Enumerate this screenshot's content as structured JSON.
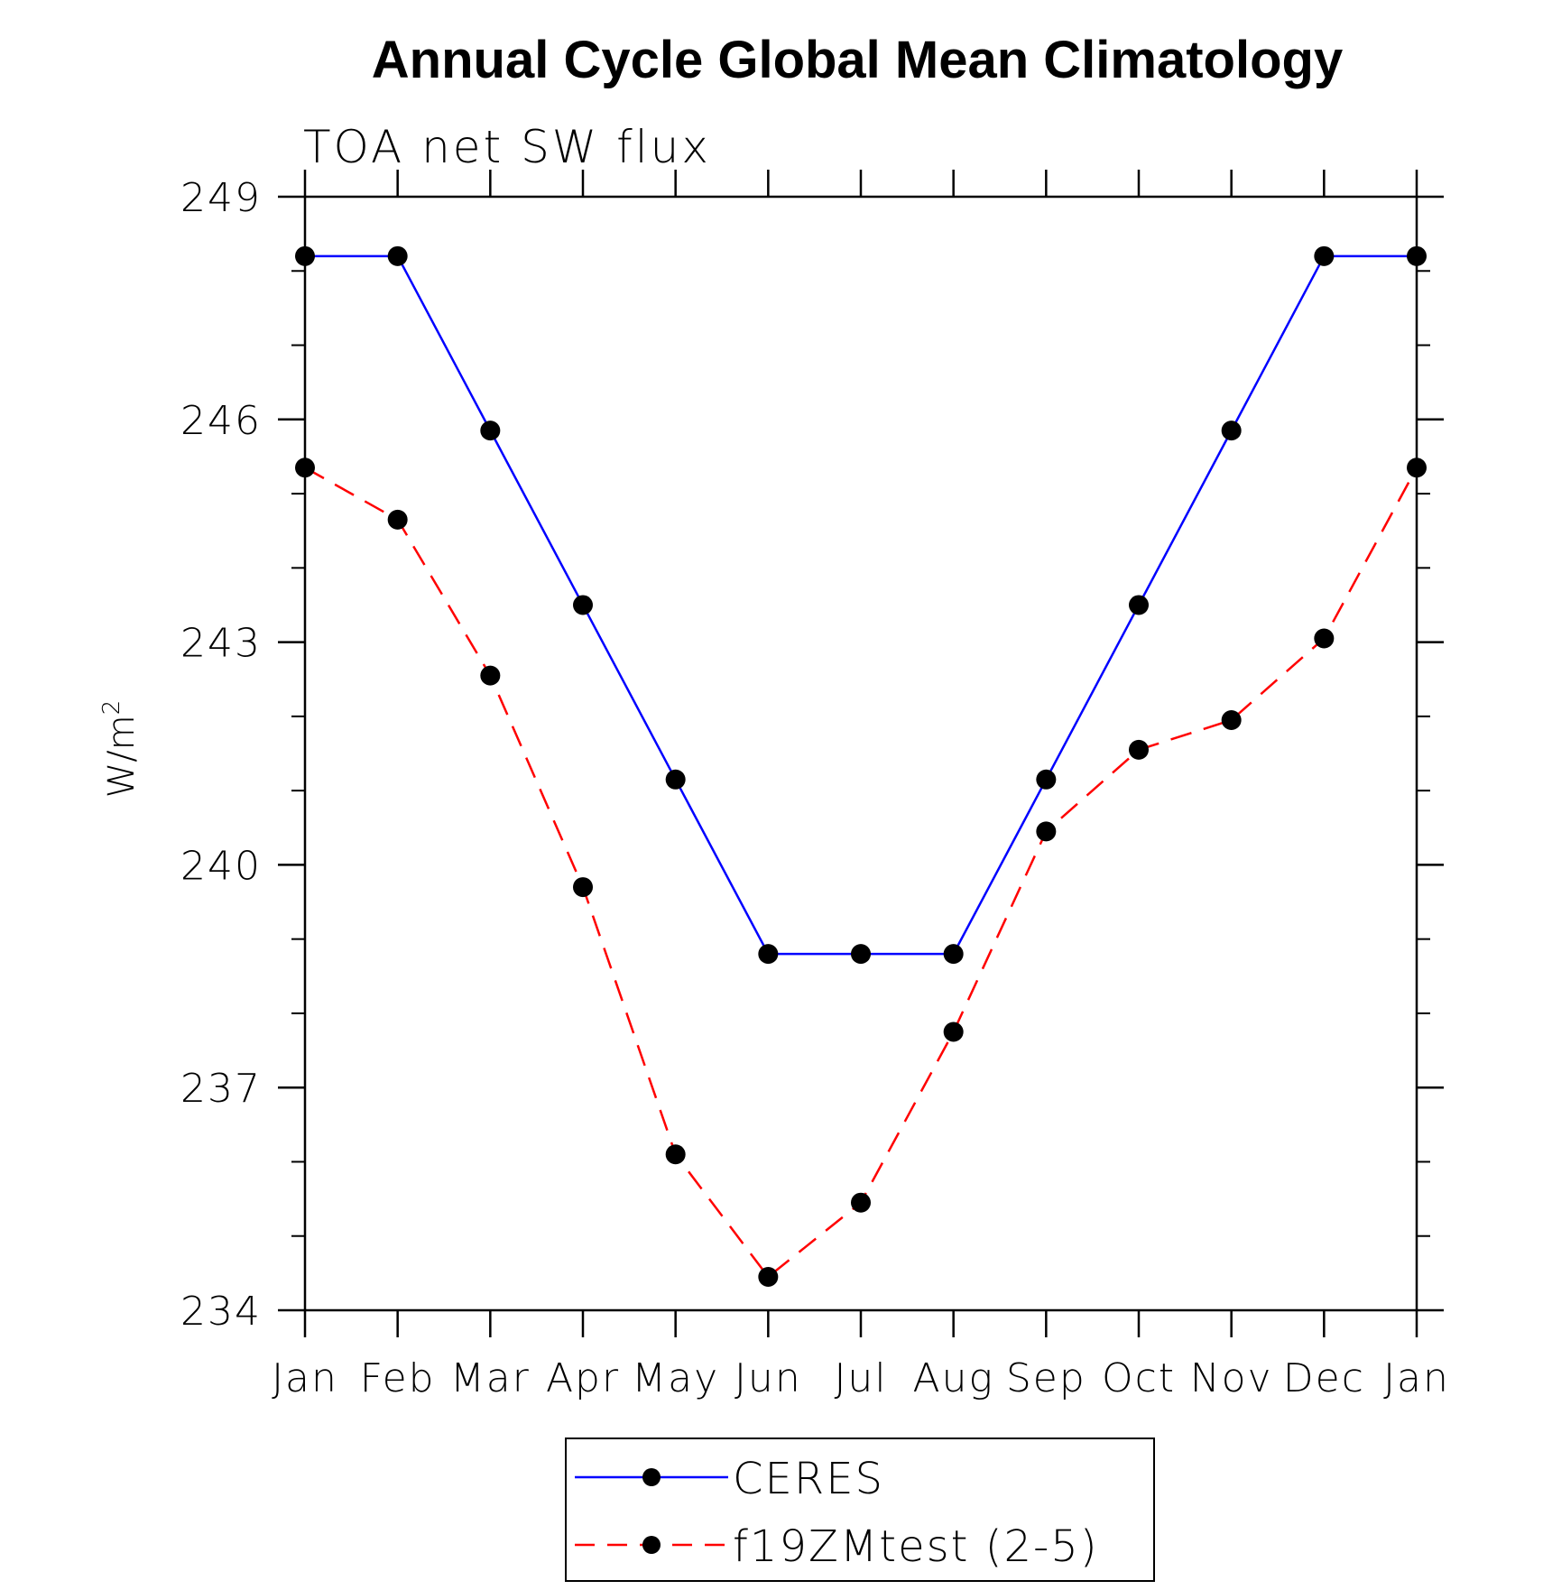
{
  "chart_data": {
    "type": "line",
    "title": "Annual Cycle Global Mean Climatology",
    "subtitle": "TOA net SW flux",
    "ylabel_base": "W/m",
    "ylabel_sup": "2",
    "categories": [
      "Jan",
      "Feb",
      "Mar",
      "Apr",
      "May",
      "Jun",
      "Jul",
      "Aug",
      "Sep",
      "Oct",
      "Nov",
      "Dec",
      "Jan"
    ],
    "ylim": [
      234,
      249
    ],
    "yticks": [
      234,
      237,
      240,
      243,
      246,
      249
    ],
    "y_minor_step": 1,
    "grid": false,
    "legend_position": "bottom-center",
    "series": [
      {
        "name": "CERES",
        "color": "#0000ff",
        "line_style": "solid",
        "marker": "filled-circle",
        "values": [
          248.2,
          248.2,
          245.85,
          243.5,
          241.15,
          238.8,
          238.8,
          238.8,
          241.15,
          243.5,
          245.85,
          248.2,
          248.2
        ]
      },
      {
        "name": "f19ZMtest (2-5)",
        "color": "#ff0000",
        "line_style": "dashed",
        "marker": "filled-circle",
        "values": [
          245.35,
          244.65,
          242.55,
          239.7,
          236.1,
          234.45,
          235.45,
          237.75,
          240.45,
          241.55,
          241.95,
          243.05,
          245.35
        ]
      }
    ]
  }
}
